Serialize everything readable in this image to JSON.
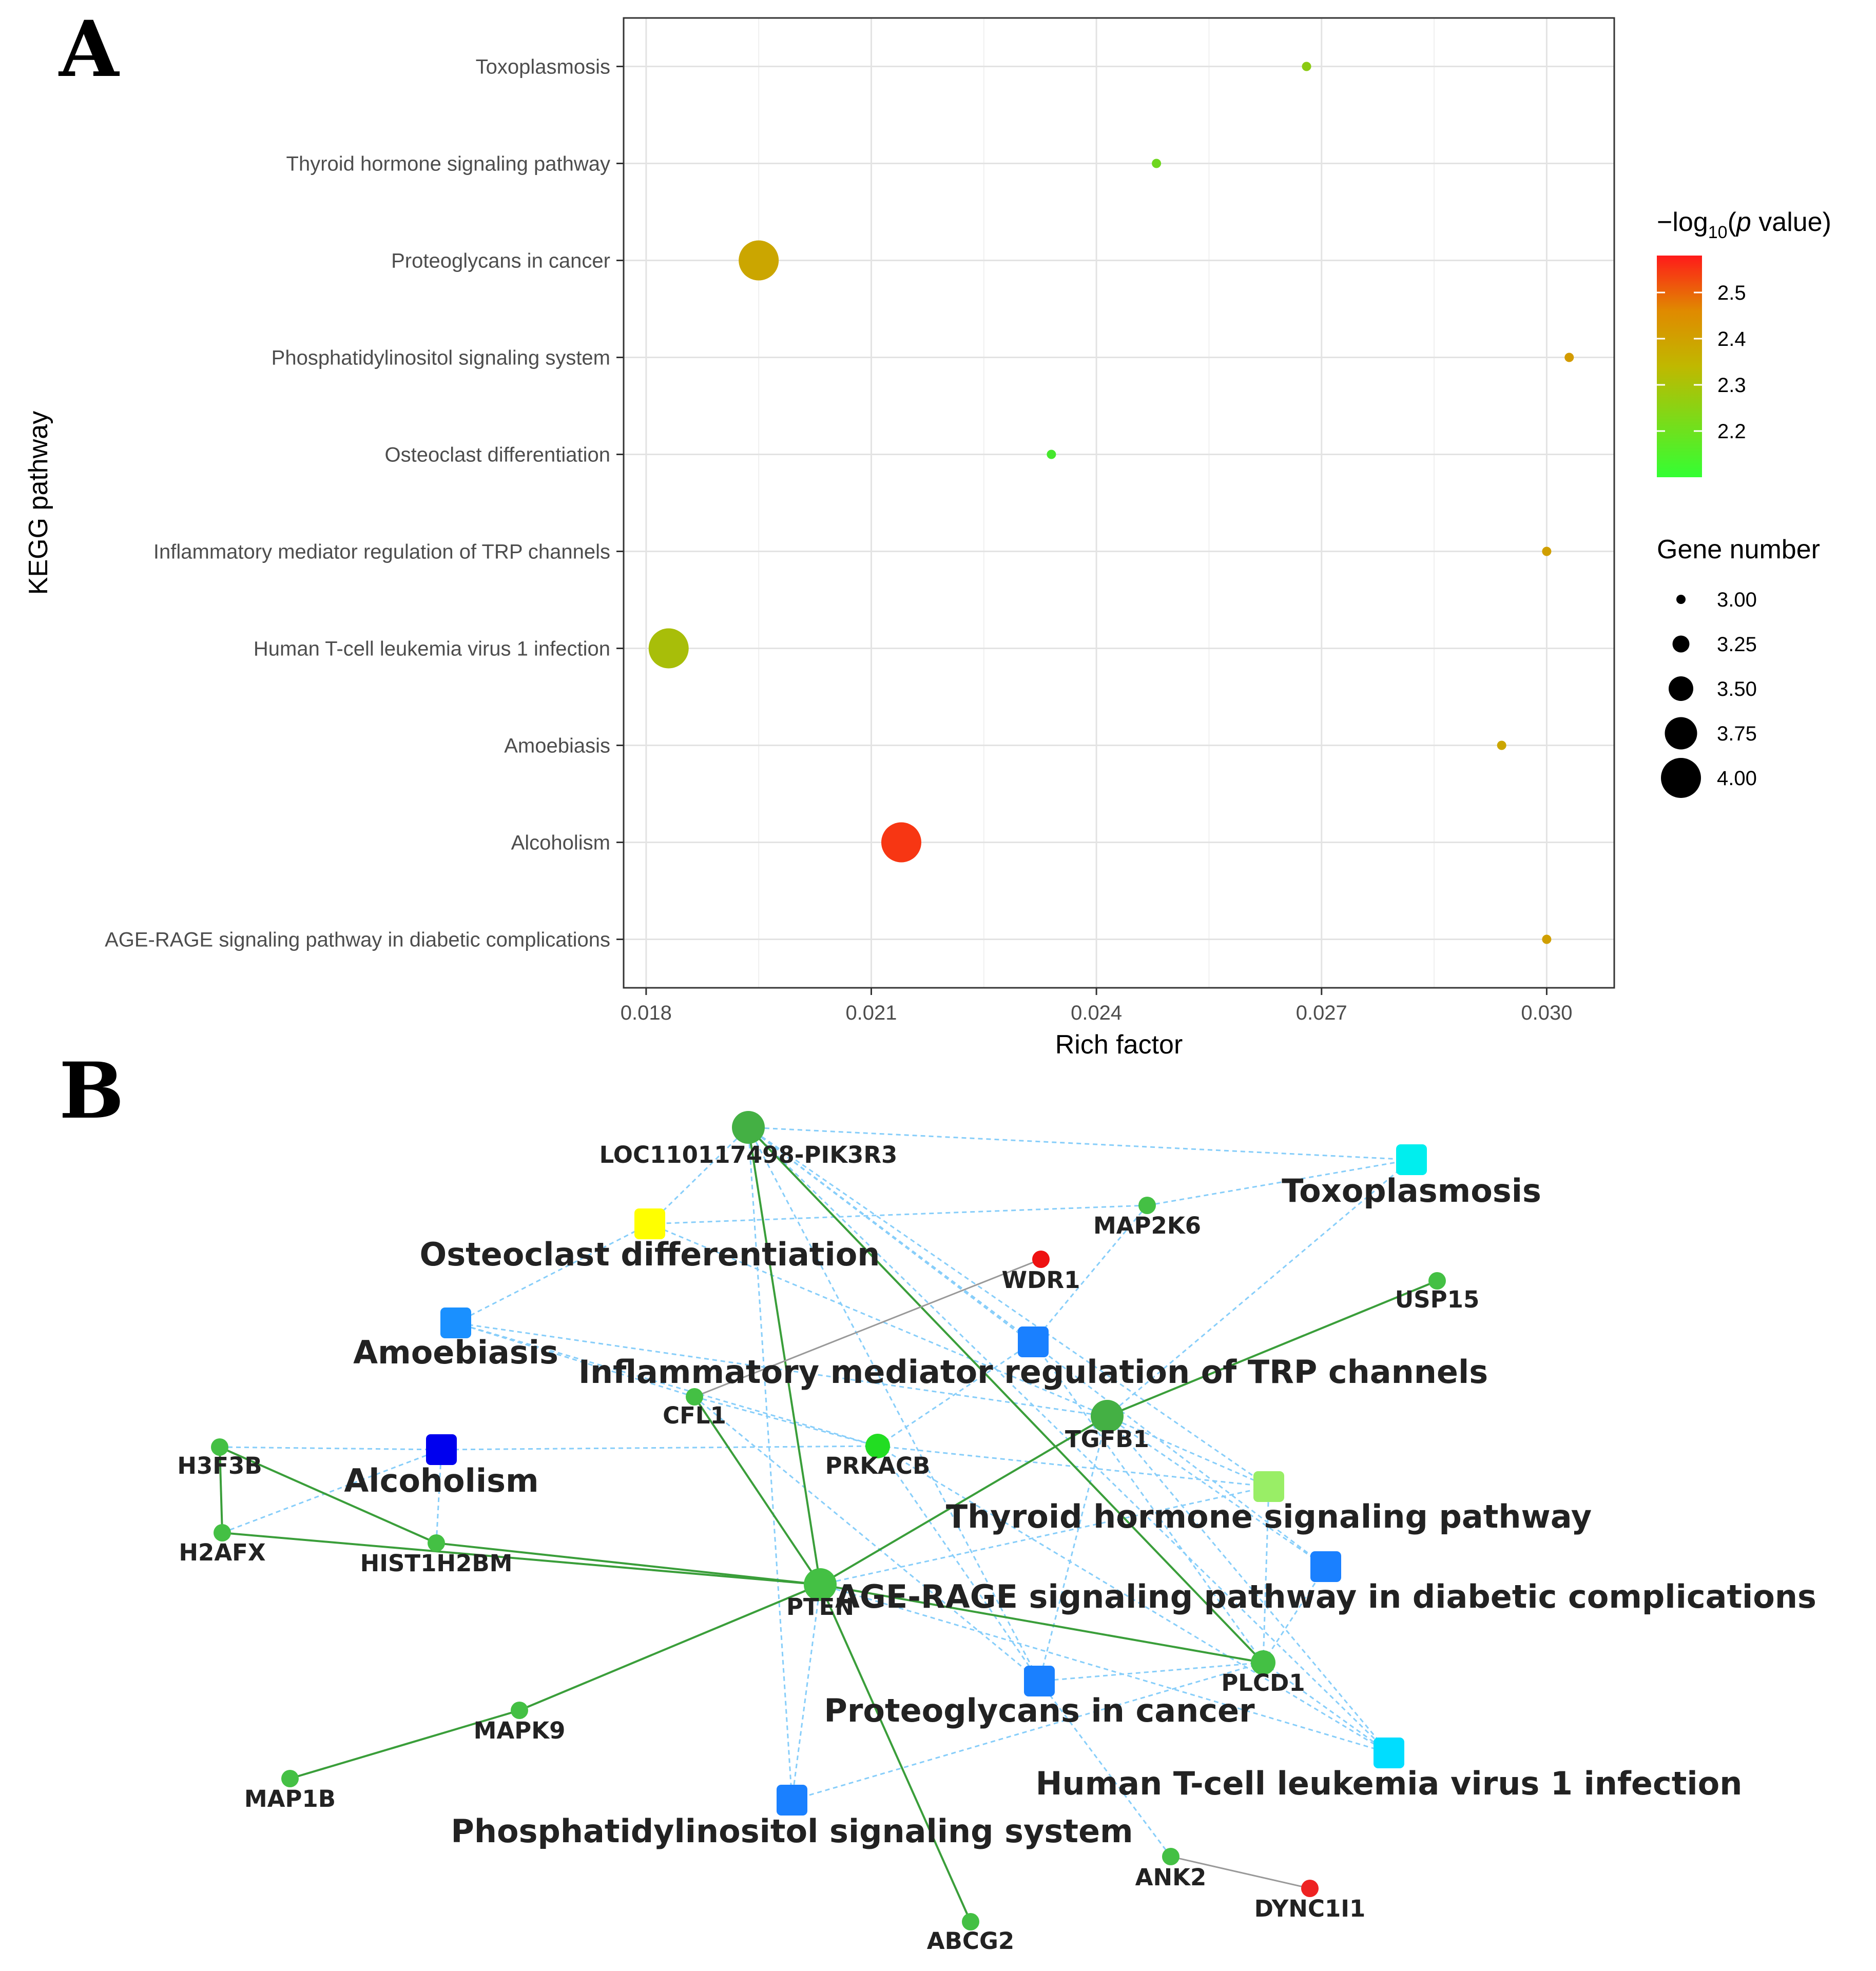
{
  "panels": {
    "a": "A",
    "b": "B"
  },
  "chart_data": [
    {
      "type": "scatter",
      "panel": "A",
      "title": "",
      "xlabel": "Rich factor",
      "ylabel": "KEGG pathway",
      "xlim": [
        0.0177,
        0.0309
      ],
      "xticks": [
        0.018,
        0.021,
        0.024,
        0.027,
        0.03
      ],
      "xtick_labels": [
        "0.018",
        "0.021",
        "0.024",
        "0.027",
        "0.030"
      ],
      "categories": [
        "AGE-RAGE signaling pathway in diabetic complications",
        "Alcoholism",
        "Amoebiasis",
        "Human T-cell leukemia virus 1 infection",
        "Inflammatory mediator regulation of TRP channels",
        "Osteoclast differentiation",
        "Phosphatidylinositol signaling system",
        "Proteoglycans in cancer",
        "Thyroid hormone signaling pathway",
        "Toxoplasmosis"
      ],
      "points": [
        {
          "pathway": "AGE-RAGE signaling pathway in diabetic complications",
          "rich_factor": 0.03,
          "neg_log10_p": 2.4,
          "gene_number": 3
        },
        {
          "pathway": "Alcoholism",
          "rich_factor": 0.0214,
          "neg_log10_p": 2.55,
          "gene_number": 4
        },
        {
          "pathway": "Amoebiasis",
          "rich_factor": 0.0294,
          "neg_log10_p": 2.38,
          "gene_number": 3
        },
        {
          "pathway": "Human T-cell leukemia virus 1 infection",
          "rich_factor": 0.0183,
          "neg_log10_p": 2.3,
          "gene_number": 4
        },
        {
          "pathway": "Inflammatory mediator regulation of TRP channels",
          "rich_factor": 0.03,
          "neg_log10_p": 2.4,
          "gene_number": 3
        },
        {
          "pathway": "Osteoclast differentiation",
          "rich_factor": 0.0234,
          "neg_log10_p": 2.13,
          "gene_number": 3
        },
        {
          "pathway": "Phosphatidylinositol signaling system",
          "rich_factor": 0.0303,
          "neg_log10_p": 2.41,
          "gene_number": 3
        },
        {
          "pathway": "Proteoglycans in cancer",
          "rich_factor": 0.0195,
          "neg_log10_p": 2.38,
          "gene_number": 4
        },
        {
          "pathway": "Thyroid hormone signaling pathway",
          "rich_factor": 0.0248,
          "neg_log10_p": 2.2,
          "gene_number": 3
        },
        {
          "pathway": "Toxoplasmosis",
          "rich_factor": 0.0268,
          "neg_log10_p": 2.25,
          "gene_number": 3
        }
      ],
      "legend": {
        "color_title_prefix": "−log",
        "color_title_sub": "10",
        "color_title_open": "(",
        "color_title_italic": "p",
        "color_title_suffix": " value)",
        "color_range": [
          2.1,
          2.58
        ],
        "color_ticks": [
          2.5,
          2.4,
          2.3,
          2.2
        ],
        "color_tick_labels": [
          "2.5",
          "2.4",
          "2.3",
          "2.2"
        ],
        "size_title": "Gene number",
        "size_values": [
          3.0,
          3.25,
          3.5,
          3.75,
          4.0
        ],
        "size_labels": [
          "3.00",
          "3.25",
          "3.50",
          "3.75",
          "4.00"
        ]
      },
      "colors": {
        "low": "#33ee33",
        "mid": "#c8b400",
        "high": "#ff1a1a"
      }
    },
    {
      "type": "network",
      "panel": "B",
      "nodes": [
        {
          "id": "PIK3R3",
          "label": "LOC110117498-PIK3R3",
          "kind": "gene",
          "color": "#44b044",
          "size": "large"
        },
        {
          "id": "Toxo",
          "label": "Toxoplasmosis",
          "kind": "pathway",
          "color": "#00eeee"
        },
        {
          "id": "Osteo",
          "label": "Osteoclast differentiation",
          "kind": "pathway",
          "color": "#ffff00"
        },
        {
          "id": "MAP2K6",
          "label": "MAP2K6",
          "kind": "gene",
          "color": "#44c044",
          "size": "small"
        },
        {
          "id": "WDR1",
          "label": "WDR1",
          "kind": "gene",
          "color": "#ee1111",
          "size": "small"
        },
        {
          "id": "USP15",
          "label": "USP15",
          "kind": "gene",
          "color": "#44c044",
          "size": "small"
        },
        {
          "id": "Amoe",
          "label": "Amoebiasis",
          "kind": "pathway",
          "color": "#1a90ff"
        },
        {
          "id": "TRP",
          "label": "Inflammatory mediator regulation of TRP channels",
          "kind": "pathway",
          "color": "#1a80ff"
        },
        {
          "id": "CFL1",
          "label": "CFL1",
          "kind": "gene",
          "color": "#44c044",
          "size": "small"
        },
        {
          "id": "TGFB1",
          "label": "TGFB1",
          "kind": "gene",
          "color": "#44b044",
          "size": "large"
        },
        {
          "id": "H3F3B",
          "label": "H3F3B",
          "kind": "gene",
          "color": "#44c044",
          "size": "small"
        },
        {
          "id": "Alco",
          "label": "Alcoholism",
          "kind": "pathway",
          "color": "#0000ee"
        },
        {
          "id": "PRKACB",
          "label": "PRKACB",
          "kind": "gene",
          "color": "#22dd22",
          "size": "medium"
        },
        {
          "id": "H2AFX",
          "label": "H2AFX",
          "kind": "gene",
          "color": "#44c044",
          "size": "small"
        },
        {
          "id": "HIST1H2BM",
          "label": "HIST1H2BM",
          "kind": "gene",
          "color": "#44c044",
          "size": "small"
        },
        {
          "id": "Thyroid",
          "label": "Thyroid hormone signaling pathway",
          "kind": "pathway",
          "color": "#99ee66"
        },
        {
          "id": "AGE",
          "label": "AGE-RAGE signaling pathway in diabetic complications",
          "kind": "pathway",
          "color": "#1a80ff"
        },
        {
          "id": "PTEN",
          "label": "PTEN",
          "kind": "gene",
          "color": "#44c044",
          "size": "large"
        },
        {
          "id": "PLCD1",
          "label": "PLCD1",
          "kind": "gene",
          "color": "#44c044",
          "size": "medium"
        },
        {
          "id": "Proteo",
          "label": "Proteoglycans in cancer",
          "kind": "pathway",
          "color": "#1a80ff"
        },
        {
          "id": "MAPK9",
          "label": "MAPK9",
          "kind": "gene",
          "color": "#44c044",
          "size": "small"
        },
        {
          "id": "HTLV",
          "label": "Human T-cell leukemia virus 1 infection",
          "kind": "pathway",
          "color": "#00ddff"
        },
        {
          "id": "MAP1B",
          "label": "MAP1B",
          "kind": "gene",
          "color": "#44c044",
          "size": "small"
        },
        {
          "id": "PIS",
          "label": "Phosphatidylinositol signaling system",
          "kind": "pathway",
          "color": "#1a80ff"
        },
        {
          "id": "ANK2",
          "label": "ANK2",
          "kind": "gene",
          "color": "#44c044",
          "size": "small"
        },
        {
          "id": "DYNC1I1",
          "label": "DYNC1I1",
          "kind": "gene",
          "color": "#ee2222",
          "size": "small"
        },
        {
          "id": "ABCG2",
          "label": "ABCG2",
          "kind": "gene",
          "color": "#44c044",
          "size": "small"
        }
      ],
      "edge_types": {
        "gene_gene": "#3a9e3a",
        "gene_pathway": "#87cefa",
        "other": "#999999"
      },
      "edges": [
        [
          "PIK3R3",
          "Toxo",
          "gene_pathway"
        ],
        [
          "PIK3R3",
          "Osteo",
          "gene_pathway"
        ],
        [
          "PIK3R3",
          "TRP",
          "gene_pathway"
        ],
        [
          "PIK3R3",
          "Thyroid",
          "gene_pathway"
        ],
        [
          "PIK3R3",
          "AGE",
          "gene_pathway"
        ],
        [
          "PIK3R3",
          "Proteo",
          "gene_pathway"
        ],
        [
          "PIK3R3",
          "PIS",
          "gene_pathway"
        ],
        [
          "PIK3R3",
          "HTLV",
          "gene_pathway"
        ],
        [
          "MAP2K6",
          "Toxo",
          "gene_pathway"
        ],
        [
          "MAP2K6",
          "Osteo",
          "gene_pathway"
        ],
        [
          "MAP2K6",
          "TRP",
          "gene_pathway"
        ],
        [
          "TGFB1",
          "Toxo",
          "gene_pathway"
        ],
        [
          "TGFB1",
          "Osteo",
          "gene_pathway"
        ],
        [
          "TGFB1",
          "HTLV",
          "gene_pathway"
        ],
        [
          "TGFB1",
          "AGE",
          "gene_pathway"
        ],
        [
          "TGFB1",
          "Proteo",
          "gene_pathway"
        ],
        [
          "TGFB1",
          "Thyroid",
          "gene_pathway"
        ],
        [
          "TGFB1",
          "Amoe",
          "gene_pathway"
        ],
        [
          "CFL1",
          "Amoe",
          "gene_pathway"
        ],
        [
          "CFL1",
          "PRKACB",
          "gene_pathway"
        ],
        [
          "CFL1",
          "Proteo",
          "gene_pathway"
        ],
        [
          "PRKACB",
          "Alco",
          "gene_pathway"
        ],
        [
          "PRKACB",
          "Amoe",
          "gene_pathway"
        ],
        [
          "PRKACB",
          "TRP",
          "gene_pathway"
        ],
        [
          "PRKACB",
          "Thyroid",
          "gene_pathway"
        ],
        [
          "PRKACB",
          "Proteo",
          "gene_pathway"
        ],
        [
          "PRKACB",
          "HTLV",
          "gene_pathway"
        ],
        [
          "PLCD1",
          "Thyroid",
          "gene_pathway"
        ],
        [
          "PLCD1",
          "PIS",
          "gene_pathway"
        ],
        [
          "PLCD1",
          "TRP",
          "gene_pathway"
        ],
        [
          "PLCD1",
          "AGE",
          "gene_pathway"
        ],
        [
          "PLCD1",
          "Proteo",
          "gene_pathway"
        ],
        [
          "PLCD1",
          "HTLV",
          "gene_pathway"
        ],
        [
          "PTEN",
          "Thyroid",
          "gene_pathway"
        ],
        [
          "PTEN",
          "HTLV",
          "gene_pathway"
        ],
        [
          "PTEN",
          "PIS",
          "gene_pathway"
        ],
        [
          "H3F3B",
          "Alco",
          "gene_pathway"
        ],
        [
          "H2AFX",
          "Alco",
          "gene_pathway"
        ],
        [
          "HIST1H2BM",
          "Alco",
          "gene_pathway"
        ],
        [
          "ANK2",
          "Proteo",
          "gene_pathway"
        ],
        [
          "Amoe",
          "Osteo",
          "gene_pathway"
        ],
        [
          "PIK3R3",
          "PTEN",
          "gene_gene"
        ],
        [
          "PIK3R3",
          "PLCD1",
          "gene_gene"
        ],
        [
          "TGFB1",
          "USP15",
          "gene_gene"
        ],
        [
          "TGFB1",
          "PTEN",
          "gene_gene"
        ],
        [
          "CFL1",
          "PTEN",
          "gene_gene"
        ],
        [
          "PTEN",
          "PLCD1",
          "gene_gene"
        ],
        [
          "PTEN",
          "HIST1H2BM",
          "gene_gene"
        ],
        [
          "PTEN",
          "H2AFX",
          "gene_gene"
        ],
        [
          "PTEN",
          "MAPK9",
          "gene_gene"
        ],
        [
          "PTEN",
          "ABCG2",
          "gene_gene"
        ],
        [
          "MAPK9",
          "MAP1B",
          "gene_gene"
        ],
        [
          "H3F3B",
          "H2AFX",
          "gene_gene"
        ],
        [
          "H3F3B",
          "HIST1H2BM",
          "gene_gene"
        ],
        [
          "WDR1",
          "CFL1",
          "other"
        ],
        [
          "ANK2",
          "DYNC1I1",
          "other"
        ]
      ]
    }
  ]
}
